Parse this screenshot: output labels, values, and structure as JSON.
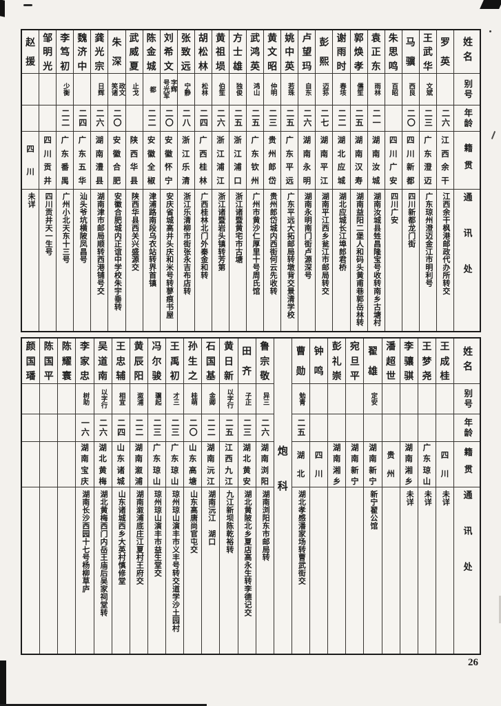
{
  "page_number": "26",
  "headers": {
    "name": "姓名",
    "alias": "别号",
    "age": "年龄",
    "native_place": "籍贯",
    "address": "通讯处"
  },
  "section_label": "炮科",
  "tables": [
    {
      "id": "upper",
      "persons": [
        {
          "name": "罗英",
          "alias": "",
          "age": "二六",
          "native_place": "江西余干",
          "address": "江西余干枫港邮政代办所转交"
        },
        {
          "name": "王武华",
          "alias": "文斌",
          "age": "二三",
          "native_place": "广东澄迈",
          "address": "广东琼州澄迈金江市明利号"
        },
        {
          "name": "马骥",
          "alias": "西良",
          "age": "二〇",
          "native_place": "四川新都",
          "address": "四川新都龙门街"
        },
        {
          "name": "朱思鸣",
          "alias": "百昭",
          "age": "",
          "native_place": "四川广安",
          "address": "四川广安"
        },
        {
          "name": "袁正东",
          "alias": "雨林",
          "age": "二一",
          "native_place": "湖南汝城",
          "address": "湖南汝城县甡昌隆宝号收转南乡古塘村"
        },
        {
          "name": "郭焕孝",
          "alias": "儒笙",
          "age": "二五",
          "native_place": "湖南汉寿",
          "address": "湖南益阳二堡人和码头黄甫巷郭岳林转"
        },
        {
          "name": "谢雨时",
          "alias": "春垓",
          "age": "二二",
          "native_place": "湖北应城",
          "address": "湖北应城长江埠郎君桥"
        },
        {
          "name": "彭熙",
          "alias": "迈荪",
          "age": "二七",
          "native_place": "湖南平江",
          "address": "湖南平江西乡瓮江市邮局转交"
        },
        {
          "name": "卢望玛",
          "alias": "自东",
          "age": "二六",
          "native_place": "湖南永明",
          "address": "湖南永明南门街卢源深号"
        },
        {
          "name": "姚中英",
          "alias": "若珠",
          "age": "二五",
          "native_place": "广东平远",
          "address": "广东平远大拓邮局转墩背交景清学校"
        },
        {
          "name": "黄文昭",
          "alias": "仲明",
          "age": "二三",
          "native_place": "贵州郎岱",
          "address": "贵州郎岱城内西街何云先收转"
        },
        {
          "name": "武鸿英",
          "alias": "鸿山",
          "age": "二五",
          "native_place": "广东钦州",
          "address": "广州市黄沙仁厚里十号周氏馆"
        },
        {
          "name": "方士雄",
          "alias": "独俊",
          "age": "二五",
          "native_place": "浙江浦口",
          "address": "浙江诸暨黄宅市古塘"
        },
        {
          "name": "黄祖埙",
          "alias": "伯笙",
          "age": "二六",
          "native_place": "浙江浦江",
          "address": "浙江诸暨岩头镇转芳第"
        },
        {
          "name": "胡松林",
          "alias": "松林",
          "age": "二四",
          "native_place": "广西桂林",
          "address": "广西桂林北门外秦金和转"
        },
        {
          "name": "张致远",
          "alias": "宁静",
          "age": "二八",
          "native_place": "浙江乐清",
          "address": "浙江乐清柳市街张永吉布店转"
        },
        {
          "name": "刘希文",
          "alias": "字辉\n号光军",
          "age": "二〇",
          "native_place": "安徽怀宁",
          "address": "安庆省城高井头庆和米号转蓼痕书屋"
        },
        {
          "name": "陈金城",
          "alias": "都",
          "age": "二二",
          "native_place": "安徽全椒",
          "address": "津浦路南段乌衣站转界首镇"
        },
        {
          "name": "武威夏",
          "alias": "止戈",
          "age": "",
          "native_place": "陕西华县",
          "address": "陕西华县西关兴盛源交"
        },
        {
          "name": "朱深",
          "alias": "政文\n笑诸",
          "age": "二〇",
          "native_place": "安徽合肥",
          "address": "安徽合肥城内正谊中学校朱宇垂转"
        },
        {
          "name": "龚光宗",
          "alias": "日辉",
          "age": "二六",
          "native_place": "湖南澧县",
          "address": "湖南津市邮局顺转西港铺号交"
        },
        {
          "name": "魏济中",
          "alias": "",
          "age": "二四",
          "native_place": "广东五华",
          "address": "汕头爷坑横陂凤昌号"
        },
        {
          "name": "李笃初",
          "alias": "少衡",
          "age": "二二",
          "native_place": "广东番禺",
          "address": "广州小北天东十三号"
        },
        {
          "name": "邹明光",
          "alias": "",
          "age": "",
          "native_place": "四川贡井",
          "address": "四川贡井天一生号"
        },
        {
          "name": "赵援",
          "alias": "",
          "age": "",
          "native_place": "四川",
          "address": "未详"
        }
      ]
    },
    {
      "id": "lower",
      "persons": [
        {
          "name": "王成桂",
          "alias": "",
          "age": "",
          "native_place": "四川",
          "address": "未详"
        },
        {
          "name": "王梦尧",
          "alias": "",
          "age": "",
          "native_place": "广东琼山",
          "address": "未详"
        },
        {
          "name": "李骧骐",
          "alias": "",
          "age": "",
          "native_place": "湖南湘乡",
          "address": "未详"
        },
        {
          "name": "潘超世",
          "alias": "",
          "age": "",
          "native_place": "贵州",
          "address": ""
        },
        {
          "name": "翟雄",
          "alias": "定安",
          "age": "",
          "native_place": "湖南新宁",
          "address": "新宁翟公馆"
        },
        {
          "name": "宛旦平",
          "alias": "",
          "age": "",
          "native_place": "湖南新宁",
          "address": ""
        },
        {
          "name": "彭礼崇",
          "alias": "",
          "age": "",
          "native_place": "湖南湘乡",
          "address": ""
        },
        {
          "name": "钟鸣",
          "alias": "",
          "age": "",
          "native_place": "四川",
          "address": ""
        },
        {
          "name": "曹勋",
          "alias": "勉青",
          "age": "二五",
          "native_place": "湖北",
          "address": "湖北孝感潘家场转曹武街交"
        },
        {
          "divider": true,
          "label": "炮科"
        },
        {
          "name": "鲁宗敬",
          "alias": "异三",
          "age": "二六",
          "native_place": "湖南浏阳",
          "address": "湖南浏阳东市邮局转"
        },
        {
          "name": "田齐",
          "alias": "子正",
          "age": "二三",
          "native_place": "湖北黄安",
          "address": "湖北黄陂北乡夏店高永生转李德记交"
        },
        {
          "name": "黄日新",
          "alias": "以字行",
          "age": "二五",
          "native_place": "江西九江",
          "address": "九江新坝陈乾裕转"
        },
        {
          "name": "石国基",
          "alias": "金卿",
          "age": "二二",
          "native_place": "湖南沅江",
          "address": "湖南沅江　湖口"
        },
        {
          "name": "孙生之",
          "alias": "桂萌",
          "age": "二〇",
          "native_place": "山东高塘",
          "address": "山东高唐尚官屯交"
        },
        {
          "name": "王禹初",
          "alias": "才三",
          "age": "二三",
          "native_place": "广东琼山",
          "address": "琼州琼山演丰市义丰号转交道学沙土园村"
        },
        {
          "name": "冯尔骏",
          "alias": "骥起",
          "age": "二三",
          "native_place": "广东琼山",
          "address": "琼州琼山演丰市益生堂交"
        },
        {
          "name": "黄辰阳",
          "alias": "溆浦",
          "age": "二二",
          "native_place": "湖南溆浦",
          "address": "湖南溆浦底庄江夏村王府交"
        },
        {
          "name": "王忠辅",
          "alias": "相宜",
          "age": "二四",
          "native_place": "山东诸城",
          "address": "山东诸城西乡大英村慎修堂"
        },
        {
          "name": "吴道南",
          "alias": "以字行",
          "age": "二六",
          "native_place": "湖北黄梅",
          "address": "湖北黄梅西门内岳王庙后吴家祠堂转"
        },
        {
          "name": "李家忠",
          "alias": "树助",
          "age": "一六",
          "native_place": "湖南宝庆",
          "address": "湖南长沙西园十七号杨柳草庐"
        },
        {
          "name": "陈耀寰",
          "alias": "",
          "age": "",
          "native_place": "",
          "address": ""
        },
        {
          "name": "陈国平",
          "alias": "",
          "age": "",
          "native_place": "",
          "address": ""
        },
        {
          "name": "颜国璠",
          "alias": "",
          "age": "",
          "native_place": "",
          "address": ""
        }
      ]
    }
  ]
}
